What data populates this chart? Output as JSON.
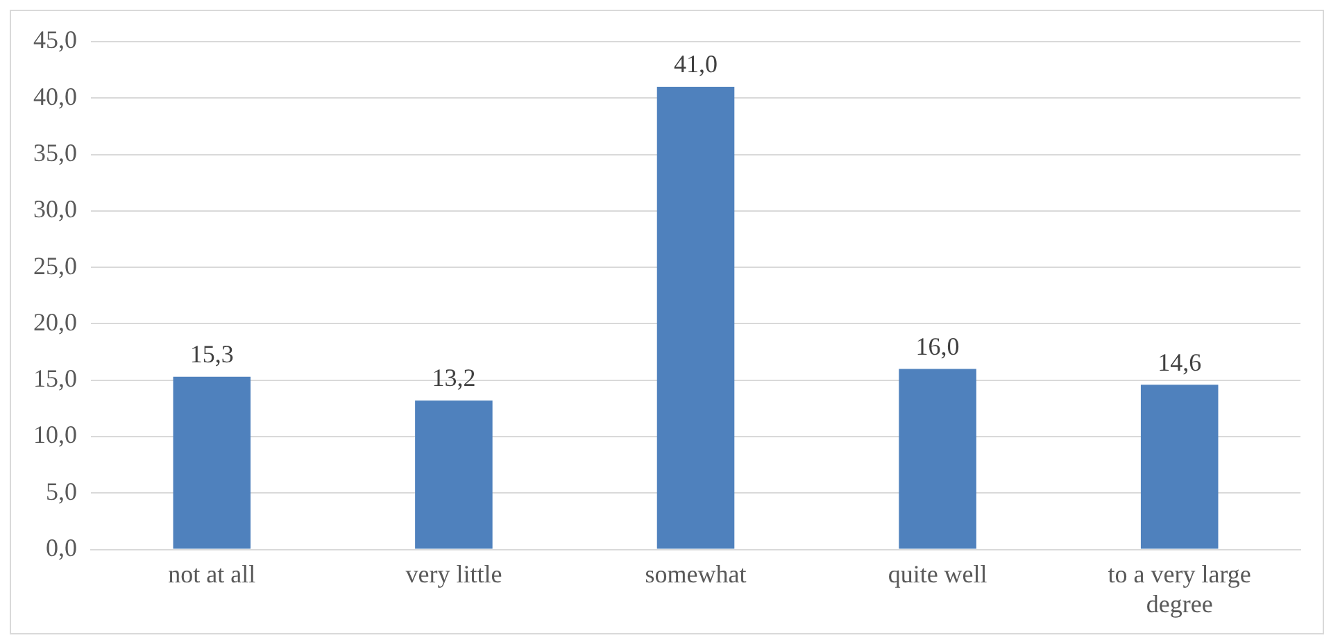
{
  "chart_data": {
    "type": "bar",
    "categories": [
      "not at all",
      "very little",
      "somewhat",
      "quite well",
      "to a very large degree"
    ],
    "values": [
      15.3,
      13.2,
      41.0,
      16.0,
      14.6
    ],
    "value_labels": [
      "15,3",
      "13,2",
      "41,0",
      "16,0",
      "14,6"
    ],
    "color": "#4f81bd",
    "ylim": [
      0,
      45
    ],
    "yticks": [
      {
        "value": 0,
        "label": "0,0"
      },
      {
        "value": 5,
        "label": "5,0"
      },
      {
        "value": 10,
        "label": "10,0"
      },
      {
        "value": 15,
        "label": "15,0"
      },
      {
        "value": 20,
        "label": "20,0"
      },
      {
        "value": 25,
        "label": "25,0"
      },
      {
        "value": 30,
        "label": "30,0"
      },
      {
        "value": 35,
        "label": "35,0"
      },
      {
        "value": 40,
        "label": "40,0"
      },
      {
        "value": 45,
        "label": "45,0"
      }
    ],
    "grid": "y",
    "legend": false
  }
}
